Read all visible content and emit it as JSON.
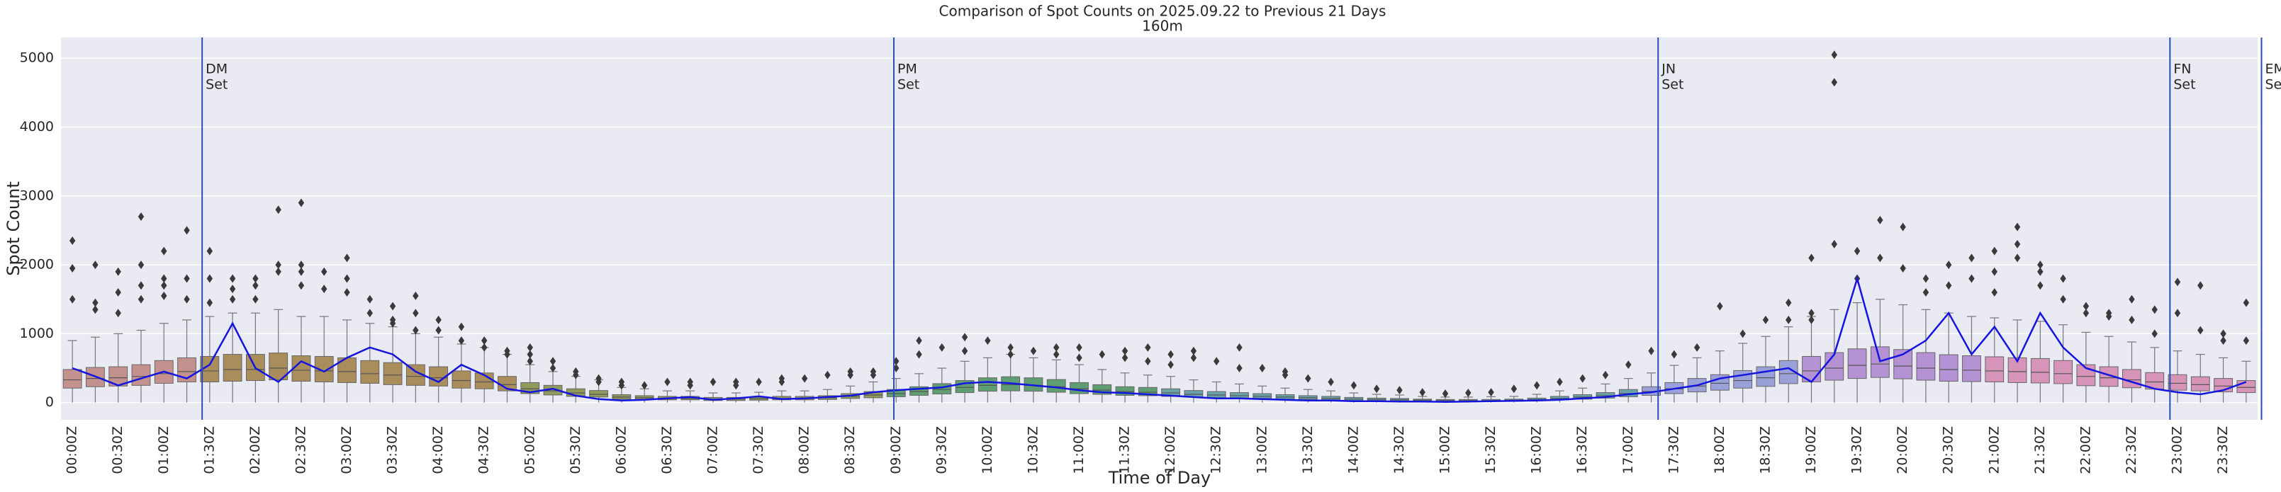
{
  "chart_data": {
    "type": "boxplot",
    "title": "Comparison of Spot Counts on 2025.09.22 to Previous 21 Days",
    "subtitle": "160m",
    "x_label": "Time of Day",
    "y_label": "Spot Count",
    "ylim": [
      -250,
      5300
    ],
    "yticks": [
      0,
      1000,
      2000,
      3000,
      4000,
      5000
    ],
    "grid": true,
    "line_color": "#1515e0",
    "marker_line_color": "#2a4bb8",
    "categories": [
      "00:00Z",
      null,
      "00:30Z",
      null,
      "01:00Z",
      null,
      "01:30Z",
      null,
      "02:00Z",
      null,
      "02:30Z",
      null,
      "03:00Z",
      null,
      "03:30Z",
      null,
      "04:00Z",
      null,
      "04:30Z",
      null,
      "05:00Z",
      null,
      "05:30Z",
      null,
      "06:00Z",
      null,
      "06:30Z",
      null,
      "07:00Z",
      null,
      "07:30Z",
      null,
      "08:00Z",
      null,
      "08:30Z",
      null,
      "09:00Z",
      null,
      "09:30Z",
      null,
      "10:00Z",
      null,
      "10:30Z",
      null,
      "11:00Z",
      null,
      "11:30Z",
      null,
      "12:00Z",
      null,
      "12:30Z",
      null,
      "13:00Z",
      null,
      "13:30Z",
      null,
      "14:00Z",
      null,
      "14:30Z",
      null,
      "15:00Z",
      null,
      "15:30Z",
      null,
      "16:00Z",
      null,
      "16:30Z",
      null,
      "17:00Z",
      null,
      "17:30Z",
      null,
      "18:00Z",
      null,
      "18:30Z",
      null,
      "19:00Z",
      null,
      "19:30Z",
      null,
      "20:00Z",
      null,
      "20:30Z",
      null,
      "21:00Z",
      null,
      "21:30Z",
      null,
      "22:00Z",
      null,
      "22:30Z",
      null,
      "23:00Z",
      null,
      "23:30Z",
      null
    ],
    "colors": [
      "#c4928e",
      "#c4928e",
      "#c4928e",
      "#c4928e",
      "#c4928e",
      "#c4928e",
      "#a98e5c",
      "#a98e5c",
      "#a98e5c",
      "#a98e5c",
      "#a98e5c",
      "#a98e5c",
      "#a98e5c",
      "#a98e5c",
      "#a98e5c",
      "#a98e5c",
      "#a98e5c",
      "#a98e5c",
      "#a98e5c",
      "#a98e5c",
      "#8f9a5c",
      "#8f9a5c",
      "#8f9a5c",
      "#8f9a5c",
      "#8f9a5c",
      "#8f9a5c",
      "#8f9a5c",
      "#8f9a5c",
      "#8f9a5c",
      "#8f9a5c",
      "#8f9a5c",
      "#8f9a5c",
      "#8f9a5c",
      "#8f9a5c",
      "#8f9a5c",
      "#8f9a5c",
      "#5e9e72",
      "#5e9e72",
      "#5e9e72",
      "#5e9e72",
      "#5e9e72",
      "#5e9e72",
      "#5e9e72",
      "#5e9e72",
      "#5e9e72",
      "#5e9e72",
      "#5e9e72",
      "#5e9e72",
      "#6aa2a8",
      "#6aa2a8",
      "#6aa2a8",
      "#6aa2a8",
      "#6aa2a8",
      "#6aa2a8",
      "#6aa2a8",
      "#6aa2a8",
      "#6aa2a8",
      "#6aa2a8",
      "#6aa2a8",
      "#6aa2a8",
      "#6aa2a8",
      "#6aa2a8",
      "#6aa2a8",
      "#6aa2a8",
      "#6aa2a8",
      "#6aa2a8",
      "#6aa2a8",
      "#6aa2a8",
      "#6aa2a8",
      "#9aa0d8",
      "#9aa0d8",
      "#9aa0d8",
      "#9aa0d8",
      "#9aa0d8",
      "#9aa0d8",
      "#9aa0d8",
      "#b592d4",
      "#b592d4",
      "#b592d4",
      "#b592d4",
      "#b592d4",
      "#b592d4",
      "#b592d4",
      "#b592d4",
      "#d594b8",
      "#d594b8",
      "#d594b8",
      "#d594b8",
      "#d594b8",
      "#d594b8",
      "#d594b8",
      "#d594b8",
      "#d594b8",
      "#d594b8",
      "#d594b8",
      "#d594b8"
    ],
    "whisker_low": [
      0,
      0,
      0,
      0,
      0,
      0,
      0,
      0,
      0,
      0,
      0,
      0,
      0,
      0,
      0,
      0,
      0,
      0,
      0,
      0,
      0,
      0,
      0,
      0,
      0,
      0,
      0,
      0,
      0,
      0,
      0,
      0,
      0,
      0,
      0,
      0,
      0,
      0,
      0,
      0,
      0,
      0,
      0,
      0,
      0,
      0,
      0,
      0,
      0,
      0,
      0,
      0,
      0,
      0,
      0,
      0,
      0,
      0,
      0,
      0,
      0,
      0,
      0,
      0,
      0,
      0,
      0,
      0,
      0,
      0,
      0,
      0,
      0,
      0,
      0,
      0,
      0,
      0,
      0,
      0,
      0,
      0,
      0,
      0,
      0,
      0,
      0,
      0,
      0,
      0,
      0,
      0,
      0,
      0,
      0,
      0
    ],
    "q1": [
      210,
      230,
      240,
      250,
      280,
      300,
      300,
      310,
      320,
      330,
      310,
      300,
      290,
      280,
      260,
      250,
      240,
      210,
      200,
      170,
      130,
      110,
      90,
      80,
      50,
      45,
      40,
      40,
      30,
      30,
      35,
      40,
      40,
      45,
      60,
      70,
      85,
      105,
      125,
      145,
      165,
      170,
      165,
      150,
      130,
      120,
      105,
      100,
      90,
      80,
      70,
      65,
      60,
      50,
      45,
      40,
      30,
      30,
      25,
      20,
      20,
      20,
      20,
      20,
      30,
      40,
      50,
      65,
      85,
      105,
      130,
      155,
      180,
      210,
      235,
      275,
      300,
      325,
      350,
      365,
      345,
      325,
      310,
      305,
      300,
      290,
      285,
      275,
      245,
      235,
      215,
      195,
      180,
      170,
      155,
      145
    ],
    "median": [
      330,
      350,
      360,
      380,
      420,
      450,
      460,
      480,
      480,
      500,
      470,
      460,
      450,
      420,
      400,
      380,
      360,
      320,
      300,
      260,
      200,
      170,
      140,
      120,
      80,
      70,
      60,
      60,
      50,
      50,
      55,
      60,
      60,
      70,
      90,
      110,
      130,
      160,
      190,
      220,
      250,
      260,
      250,
      230,
      200,
      180,
      160,
      150,
      140,
      120,
      110,
      100,
      90,
      80,
      70,
      60,
      50,
      45,
      40,
      35,
      30,
      30,
      30,
      35,
      45,
      60,
      80,
      100,
      130,
      160,
      200,
      240,
      280,
      320,
      360,
      420,
      460,
      500,
      540,
      560,
      530,
      500,
      480,
      470,
      460,
      450,
      440,
      420,
      380,
      360,
      330,
      300,
      280,
      260,
      240,
      220
    ],
    "q3": [
      480,
      510,
      520,
      550,
      610,
      650,
      670,
      700,
      700,
      720,
      680,
      670,
      650,
      610,
      580,
      550,
      520,
      460,
      430,
      380,
      290,
      250,
      200,
      175,
      115,
      100,
      90,
      90,
      75,
      75,
      80,
      90,
      90,
      100,
      130,
      160,
      190,
      230,
      275,
      320,
      360,
      375,
      360,
      335,
      290,
      260,
      230,
      220,
      200,
      175,
      160,
      145,
      130,
      115,
      100,
      90,
      75,
      65,
      60,
      50,
      45,
      45,
      45,
      50,
      65,
      90,
      115,
      145,
      190,
      230,
      290,
      350,
      405,
      465,
      520,
      610,
      670,
      725,
      780,
      810,
      770,
      725,
      695,
      680,
      665,
      650,
      640,
      610,
      550,
      520,
      480,
      435,
      405,
      375,
      350,
      320
    ],
    "whisker_high": [
      900,
      950,
      1000,
      1050,
      1150,
      1200,
      1250,
      1300,
      1300,
      1350,
      1250,
      1250,
      1200,
      1150,
      1100,
      1000,
      950,
      850,
      800,
      700,
      550,
      450,
      380,
      330,
      220,
      200,
      170,
      170,
      140,
      140,
      150,
      170,
      170,
      190,
      240,
      300,
      350,
      420,
      500,
      600,
      650,
      700,
      650,
      620,
      550,
      480,
      430,
      400,
      380,
      330,
      300,
      270,
      240,
      210,
      190,
      170,
      140,
      120,
      110,
      90,
      80,
      80,
      85,
      90,
      120,
      170,
      210,
      270,
      350,
      430,
      540,
      650,
      750,
      860,
      960,
      1100,
      1250,
      1350,
      1450,
      1500,
      1420,
      1350,
      1300,
      1250,
      1230,
      1200,
      1180,
      1130,
      1020,
      960,
      880,
      800,
      750,
      700,
      650,
      600
    ],
    "outliers": [
      [
        1950,
        2350,
        1500
      ],
      [
        1450,
        1350,
        2000
      ],
      [
        1300,
        1600,
        1900
      ],
      [
        1700,
        2700,
        2000,
        1500
      ],
      [
        1550,
        1700,
        2200,
        1800
      ],
      [
        2500,
        1800,
        1500
      ],
      [
        1450,
        2200,
        1800
      ],
      [
        1500,
        1650,
        1800
      ],
      [
        1700,
        1800,
        1500
      ],
      [
        2800,
        1900,
        2000
      ],
      [
        1900,
        2000,
        2900,
        1700
      ],
      [
        1900,
        1650
      ],
      [
        2100,
        1800,
        1600
      ],
      [
        1500,
        1300
      ],
      [
        1400,
        1200,
        1150
      ],
      [
        1300,
        1550,
        1050
      ],
      [
        1200,
        1050
      ],
      [
        900,
        1100
      ],
      [
        800,
        900
      ],
      [
        700,
        750
      ],
      [
        600,
        700,
        800
      ],
      [
        500,
        600
      ],
      [
        400,
        450
      ],
      [
        300,
        350
      ],
      [
        250,
        300
      ],
      [
        250
      ],
      [
        300
      ],
      [
        250,
        300
      ],
      [
        300
      ],
      [
        250,
        300
      ],
      [
        300
      ],
      [
        300,
        350
      ],
      [
        350
      ],
      [
        400
      ],
      [
        400,
        450
      ],
      [
        450,
        400
      ],
      [
        500,
        600
      ],
      [
        700,
        900
      ],
      [
        800
      ],
      [
        750,
        950
      ],
      [
        900
      ],
      [
        800,
        700
      ],
      [
        750
      ],
      [
        700,
        800
      ],
      [
        800,
        650
      ],
      [
        700
      ],
      [
        750,
        650
      ],
      [
        800,
        600
      ],
      [
        700,
        550
      ],
      [
        650,
        750
      ],
      [
        600
      ],
      [
        800,
        500
      ],
      [
        500
      ],
      [
        450,
        400
      ],
      [
        350
      ],
      [
        300
      ],
      [
        250
      ],
      [
        200
      ],
      [
        180
      ],
      [
        150
      ],
      [
        130
      ],
      [
        140
      ],
      [
        150
      ],
      [
        200
      ],
      [
        250
      ],
      [
        300
      ],
      [
        350
      ],
      [
        400
      ],
      [
        550
      ],
      [
        750
      ],
      [
        700
      ],
      [
        800
      ],
      [
        1400
      ],
      [
        1000
      ],
      [
        1200
      ],
      [
        1450,
        1200
      ],
      [
        2100,
        1200,
        1300
      ],
      [
        5050,
        4650,
        2300
      ],
      [
        2200,
        1800
      ],
      [
        2650,
        2100
      ],
      [
        2550,
        1950
      ],
      [
        1800,
        1600
      ],
      [
        1700,
        2000
      ],
      [
        2100,
        1800
      ],
      [
        2200,
        1900,
        1600
      ],
      [
        2550,
        2300,
        2100
      ],
      [
        1900,
        2000,
        1700
      ],
      [
        1800,
        1500
      ],
      [
        1400,
        1300
      ],
      [
        1300,
        1250
      ],
      [
        1200,
        1500
      ],
      [
        1350,
        1000
      ],
      [
        1750,
        1300
      ],
      [
        1700,
        1050
      ],
      [
        1000,
        900
      ],
      [
        1450,
        900
      ]
    ],
    "current": [
      500,
      380,
      250,
      350,
      450,
      350,
      550,
      1150,
      500,
      300,
      600,
      450,
      650,
      800,
      700,
      450,
      300,
      550,
      400,
      200,
      150,
      200,
      100,
      50,
      30,
      40,
      60,
      80,
      40,
      60,
      90,
      50,
      60,
      80,
      100,
      150,
      180,
      200,
      220,
      280,
      300,
      280,
      250,
      220,
      180,
      150,
      140,
      120,
      100,
      80,
      60,
      60,
      50,
      40,
      30,
      30,
      20,
      20,
      15,
      15,
      10,
      15,
      20,
      25,
      30,
      40,
      60,
      80,
      120,
      150,
      200,
      250,
      350,
      400,
      450,
      500,
      300,
      700,
      1800,
      600,
      700,
      900,
      1300,
      700,
      1100,
      600,
      1300,
      800,
      500,
      400,
      300,
      200,
      150,
      120,
      180,
      300
    ],
    "annotations": [
      {
        "x": 5.67,
        "lines": [
          "DM",
          "Set"
        ]
      },
      {
        "x": 35.9,
        "lines": [
          "PM",
          "Set"
        ]
      },
      {
        "x": 69.3,
        "lines": [
          "JN",
          "Set"
        ]
      },
      {
        "x": 91.67,
        "lines": [
          "FN",
          "Set"
        ]
      },
      {
        "x": 95.67,
        "lines": [
          "EM",
          "Set"
        ]
      }
    ]
  }
}
